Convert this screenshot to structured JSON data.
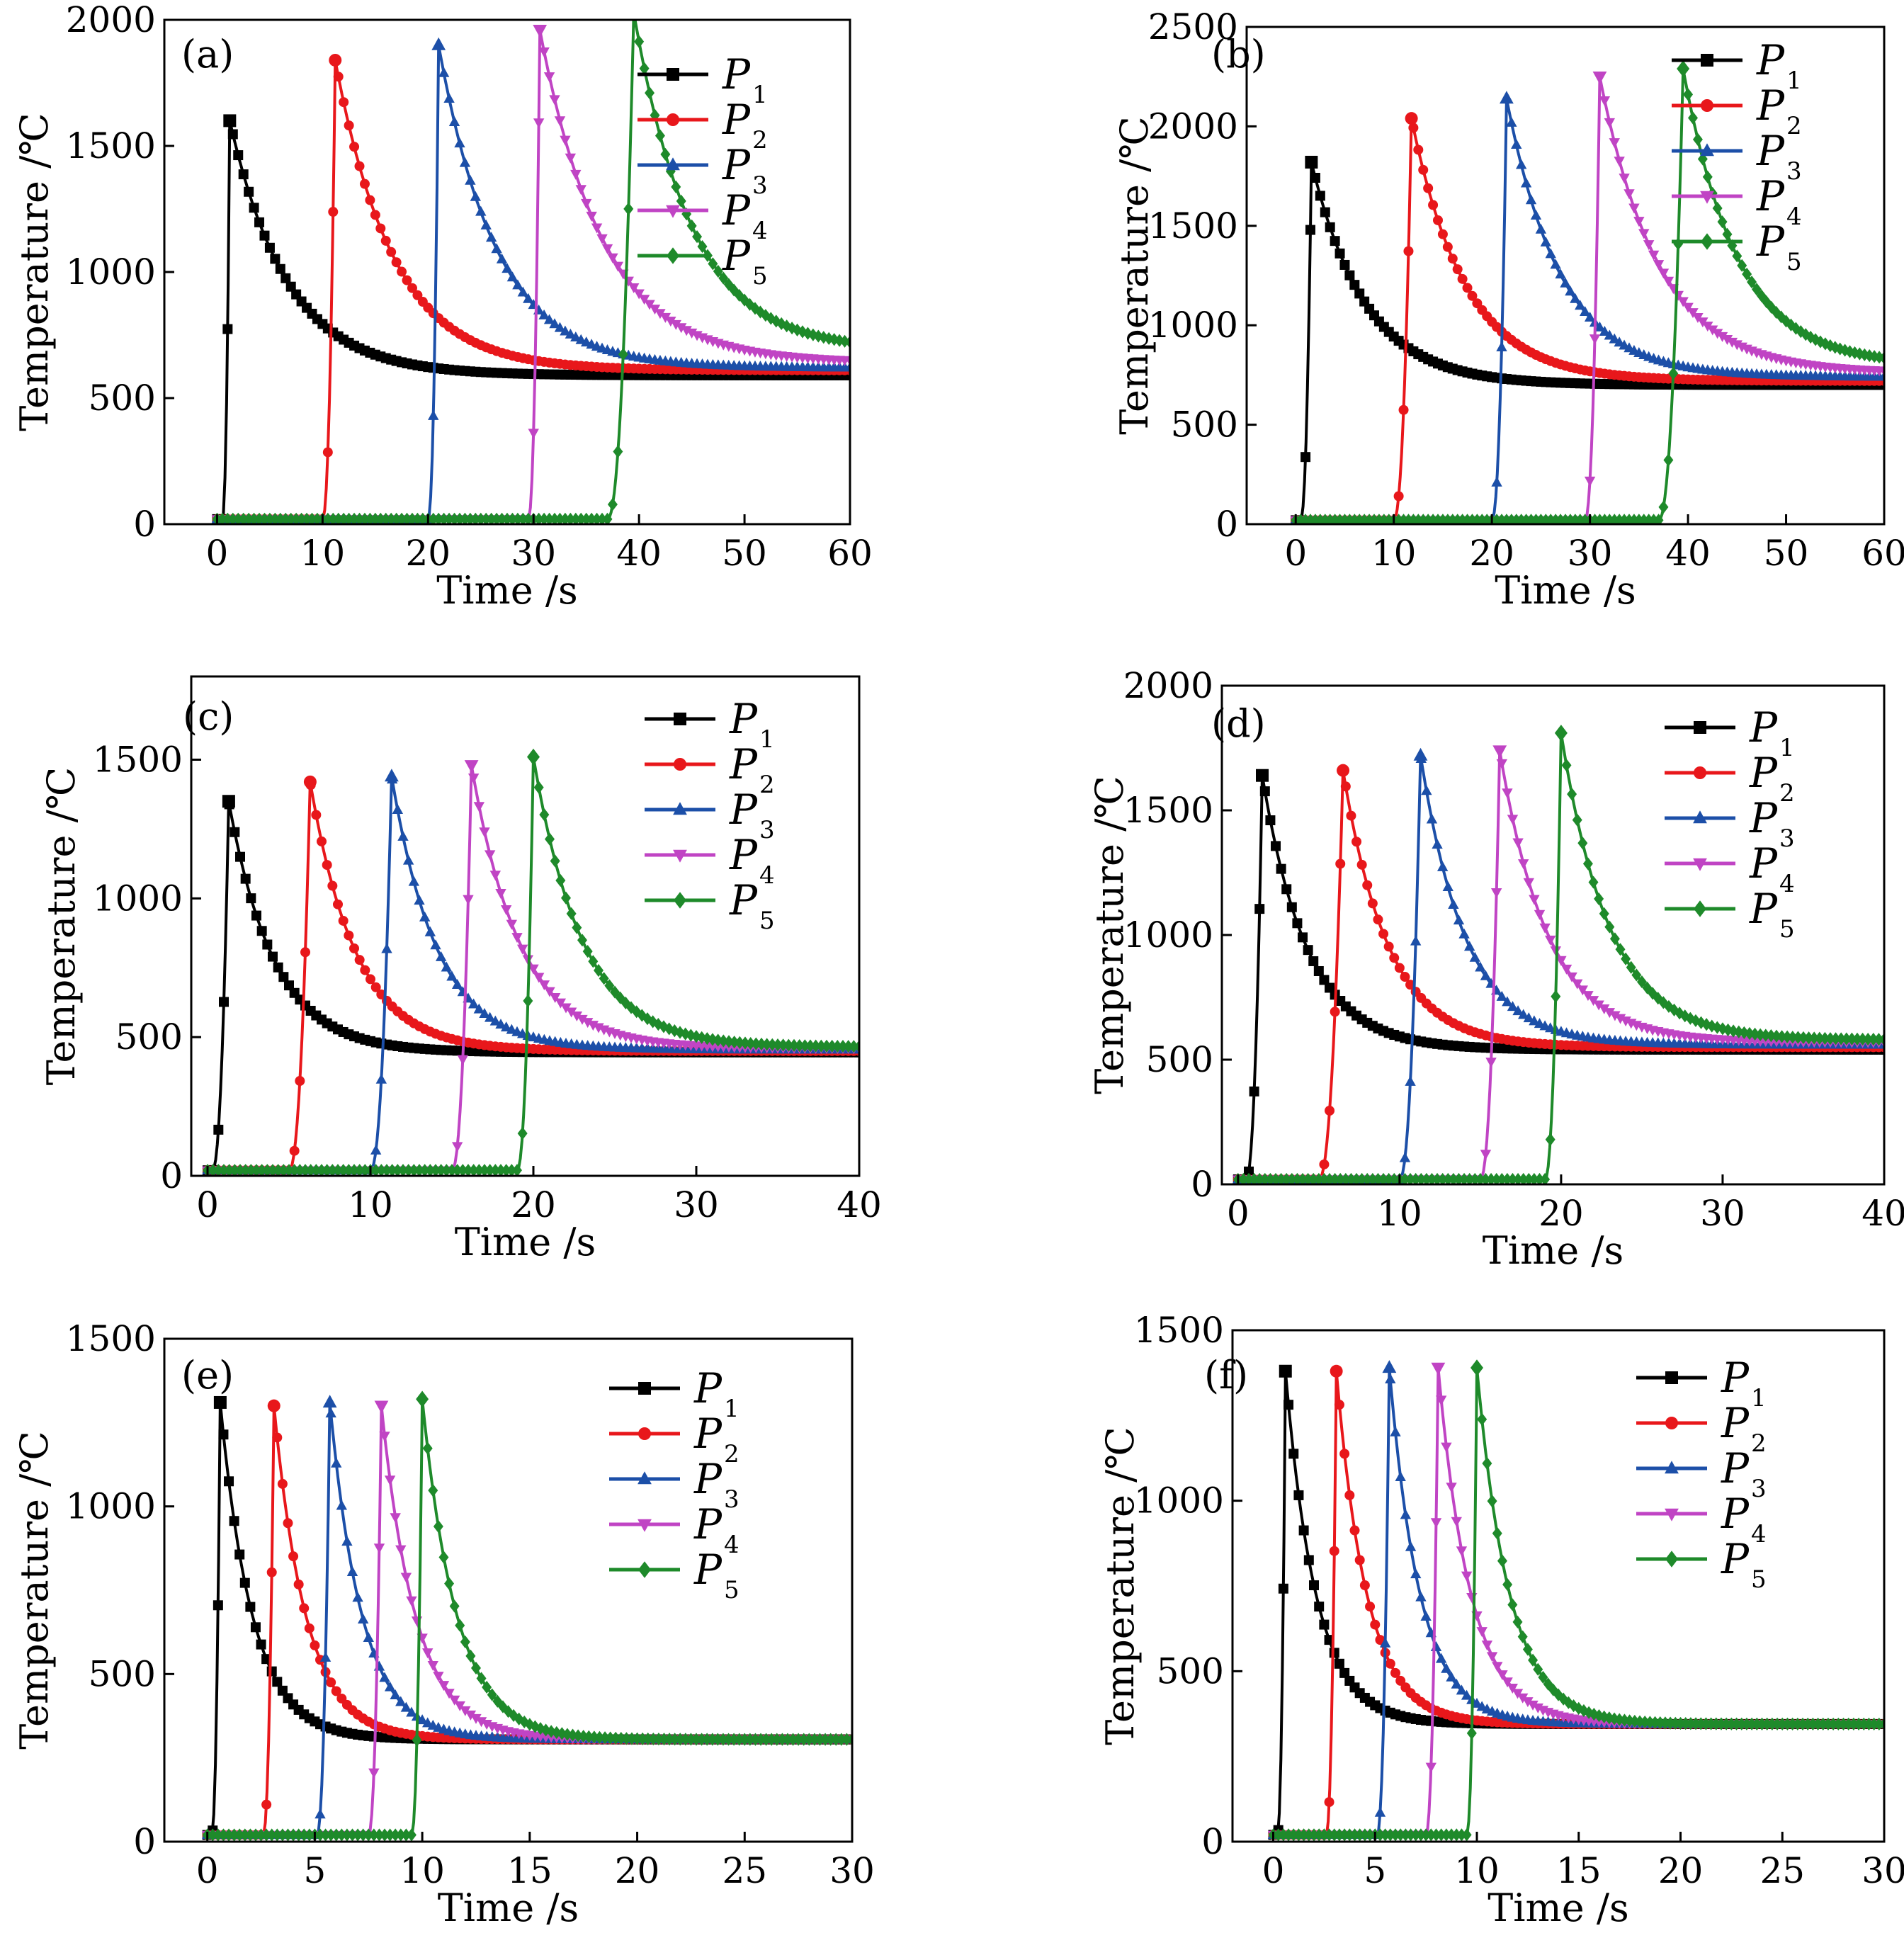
{
  "figure": {
    "marker_styles": {
      "P1": "square",
      "P2": "circle",
      "P3": "triangle-up",
      "P4": "triangle-down",
      "P5": "diamond"
    }
  },
  "chart_data": [
    {
      "type": "line",
      "panel": "(a)",
      "xlabel": "Time /s",
      "ylabel": "Temperature /℃",
      "xlim": [
        -5,
        60
      ],
      "ylim": [
        0,
        2000
      ],
      "xticks": [
        0,
        10,
        20,
        30,
        40,
        50,
        60
      ],
      "yticks": [
        0,
        500,
        1000,
        1500,
        2000
      ],
      "legend_position": "top-right",
      "grid": false,
      "ambient": 20,
      "series": [
        {
          "name": "P",
          "subscript": "1",
          "color": "#000000",
          "marker": "square",
          "start": 0.5,
          "peak_time": 1.2,
          "peak": 1600,
          "final": 590,
          "decay": 5.5
        },
        {
          "name": "P",
          "subscript": "2",
          "color": "#e8171b",
          "marker": "circle",
          "start": 10.0,
          "peak_time": 11.2,
          "peak": 1840,
          "final": 610,
          "decay": 5.5
        },
        {
          "name": "P",
          "subscript": "3",
          "color": "#1c4fa8",
          "marker": "triangle-up",
          "start": 20.0,
          "peak_time": 21.0,
          "peak": 1900,
          "final": 620,
          "decay": 5.5
        },
        {
          "name": "P",
          "subscript": "4",
          "color": "#c044c4",
          "marker": "triangle-down",
          "start": 29.5,
          "peak_time": 30.6,
          "peak": 1960,
          "final": 640,
          "decay": 6.0
        },
        {
          "name": "P",
          "subscript": "5",
          "color": "#1e8a2a",
          "marker": "diamond",
          "start": 37.0,
          "peak_time": 39.5,
          "peak": 2030,
          "final": 690,
          "decay": 5.5
        }
      ]
    },
    {
      "type": "line",
      "panel": "(b)",
      "xlabel": "Time /s",
      "ylabel": "Temperature /℃",
      "xlim": [
        -5,
        60
      ],
      "ylim": [
        0,
        2500
      ],
      "xticks": [
        0,
        10,
        20,
        30,
        40,
        50,
        60
      ],
      "yticks": [
        0,
        500,
        1000,
        1500,
        2000,
        2500
      ],
      "legend_position": "top-right",
      "grid": false,
      "ambient": 20,
      "series": [
        {
          "name": "P",
          "subscript": "1",
          "color": "#000000",
          "marker": "square",
          "start": 0.5,
          "peak_time": 1.6,
          "peak": 1820,
          "final": 700,
          "decay": 5.5
        },
        {
          "name": "P",
          "subscript": "2",
          "color": "#e8171b",
          "marker": "circle",
          "start": 10.0,
          "peak_time": 11.8,
          "peak": 2040,
          "final": 720,
          "decay": 5.5
        },
        {
          "name": "P",
          "subscript": "3",
          "color": "#1c4fa8",
          "marker": "triangle-up",
          "start": 20.0,
          "peak_time": 21.5,
          "peak": 2140,
          "final": 740,
          "decay": 5.5
        },
        {
          "name": "P",
          "subscript": "4",
          "color": "#c044c4",
          "marker": "triangle-down",
          "start": 29.5,
          "peak_time": 31.0,
          "peak": 2250,
          "final": 760,
          "decay": 6.0
        },
        {
          "name": "P",
          "subscript": "5",
          "color": "#1e8a2a",
          "marker": "diamond",
          "start": 37.0,
          "peak_time": 39.5,
          "peak": 2290,
          "final": 800,
          "decay": 5.5
        }
      ]
    },
    {
      "type": "line",
      "panel": "(c)",
      "xlabel": "Time /s",
      "ylabel": "Temperature /℃",
      "xlim": [
        -1,
        40
      ],
      "ylim": [
        0,
        1800
      ],
      "xticks": [
        0,
        10,
        20,
        30,
        40
      ],
      "yticks": [
        0,
        500,
        1000,
        1500
      ],
      "legend_position": "top-right",
      "grid": false,
      "ambient": 20,
      "series": [
        {
          "name": "P",
          "subscript": "1",
          "color": "#000000",
          "marker": "square",
          "start": 0.3,
          "peak_time": 1.3,
          "peak": 1350,
          "final": 445,
          "decay": 2.8
        },
        {
          "name": "P",
          "subscript": "2",
          "color": "#e8171b",
          "marker": "circle",
          "start": 5.0,
          "peak_time": 6.3,
          "peak": 1420,
          "final": 450,
          "decay": 2.8
        },
        {
          "name": "P",
          "subscript": "3",
          "color": "#1c4fa8",
          "marker": "triangle-up",
          "start": 10.0,
          "peak_time": 11.3,
          "peak": 1440,
          "final": 455,
          "decay": 2.8
        },
        {
          "name": "P",
          "subscript": "4",
          "color": "#c044c4",
          "marker": "triangle-down",
          "start": 15.0,
          "peak_time": 16.2,
          "peak": 1480,
          "final": 460,
          "decay": 3.0
        },
        {
          "name": "P",
          "subscript": "5",
          "color": "#1e8a2a",
          "marker": "diamond",
          "start": 19.0,
          "peak_time": 20.0,
          "peak": 1510,
          "final": 465,
          "decay": 3.0
        }
      ]
    },
    {
      "type": "line",
      "panel": "(d)",
      "xlabel": "Time /s",
      "ylabel": "Temperature /℃",
      "xlim": [
        -1,
        40
      ],
      "ylim": [
        0,
        2000
      ],
      "xticks": [
        0,
        10,
        20,
        30,
        40
      ],
      "yticks": [
        0,
        500,
        1000,
        1500,
        2000
      ],
      "legend_position": "top-right",
      "grid": false,
      "ambient": 20,
      "series": [
        {
          "name": "P",
          "subscript": "1",
          "color": "#000000",
          "marker": "square",
          "start": 0.5,
          "peak_time": 1.5,
          "peak": 1640,
          "final": 540,
          "decay": 2.8
        },
        {
          "name": "P",
          "subscript": "2",
          "color": "#e8171b",
          "marker": "circle",
          "start": 5.0,
          "peak_time": 6.5,
          "peak": 1660,
          "final": 550,
          "decay": 2.8
        },
        {
          "name": "P",
          "subscript": "3",
          "color": "#1c4fa8",
          "marker": "triangle-up",
          "start": 10.0,
          "peak_time": 11.3,
          "peak": 1720,
          "final": 560,
          "decay": 2.8
        },
        {
          "name": "P",
          "subscript": "4",
          "color": "#c044c4",
          "marker": "triangle-down",
          "start": 15.0,
          "peak_time": 16.2,
          "peak": 1740,
          "final": 570,
          "decay": 3.0
        },
        {
          "name": "P",
          "subscript": "5",
          "color": "#1e8a2a",
          "marker": "diamond",
          "start": 19.0,
          "peak_time": 20.0,
          "peak": 1810,
          "final": 580,
          "decay": 3.0
        }
      ]
    },
    {
      "type": "line",
      "panel": "(e)",
      "xlabel": "Time /s",
      "ylabel": "Temperature /℃",
      "xlim": [
        -2,
        30
      ],
      "ylim": [
        0,
        1500
      ],
      "xticks": [
        0,
        5,
        10,
        15,
        20,
        25,
        30
      ],
      "yticks": [
        0,
        500,
        1000,
        1500
      ],
      "legend_position": "top-right",
      "grid": false,
      "ambient": 20,
      "series": [
        {
          "name": "P",
          "subscript": "1",
          "color": "#000000",
          "marker": "square",
          "start": 0.2,
          "peak_time": 0.6,
          "peak": 1310,
          "final": 305,
          "decay": 1.5
        },
        {
          "name": "P",
          "subscript": "2",
          "color": "#e8171b",
          "marker": "circle",
          "start": 2.6,
          "peak_time": 3.1,
          "peak": 1300,
          "final": 305,
          "decay": 1.5
        },
        {
          "name": "P",
          "subscript": "3",
          "color": "#1c4fa8",
          "marker": "triangle-up",
          "start": 5.1,
          "peak_time": 5.7,
          "peak": 1310,
          "final": 305,
          "decay": 1.5
        },
        {
          "name": "P",
          "subscript": "4",
          "color": "#c044c4",
          "marker": "triangle-down",
          "start": 7.5,
          "peak_time": 8.1,
          "peak": 1300,
          "final": 305,
          "decay": 1.6
        },
        {
          "name": "P",
          "subscript": "5",
          "color": "#1e8a2a",
          "marker": "diamond",
          "start": 9.5,
          "peak_time": 10.0,
          "peak": 1320,
          "final": 305,
          "decay": 1.6
        }
      ]
    },
    {
      "type": "line",
      "panel": "(f)",
      "xlabel": "Time /s",
      "ylabel": "Temperature /℃",
      "xlim": [
        -2,
        30
      ],
      "ylim": [
        0,
        1500
      ],
      "xticks": [
        0,
        5,
        10,
        15,
        20,
        25,
        30
      ],
      "yticks": [
        0,
        500,
        1000,
        1500
      ],
      "legend_position": "top-right",
      "grid": false,
      "ambient": 20,
      "series": [
        {
          "name": "P",
          "subscript": "1",
          "color": "#000000",
          "marker": "square",
          "start": 0.2,
          "peak_time": 0.6,
          "peak": 1380,
          "final": 345,
          "decay": 1.5
        },
        {
          "name": "P",
          "subscript": "2",
          "color": "#e8171b",
          "marker": "circle",
          "start": 2.6,
          "peak_time": 3.1,
          "peak": 1380,
          "final": 345,
          "decay": 1.5
        },
        {
          "name": "P",
          "subscript": "3",
          "color": "#1c4fa8",
          "marker": "triangle-up",
          "start": 5.1,
          "peak_time": 5.7,
          "peak": 1390,
          "final": 345,
          "decay": 1.5
        },
        {
          "name": "P",
          "subscript": "4",
          "color": "#c044c4",
          "marker": "triangle-down",
          "start": 7.5,
          "peak_time": 8.1,
          "peak": 1390,
          "final": 345,
          "decay": 1.6
        },
        {
          "name": "P",
          "subscript": "5",
          "color": "#1e8a2a",
          "marker": "diamond",
          "start": 9.5,
          "peak_time": 10.0,
          "peak": 1390,
          "final": 345,
          "decay": 1.6
        }
      ]
    }
  ]
}
